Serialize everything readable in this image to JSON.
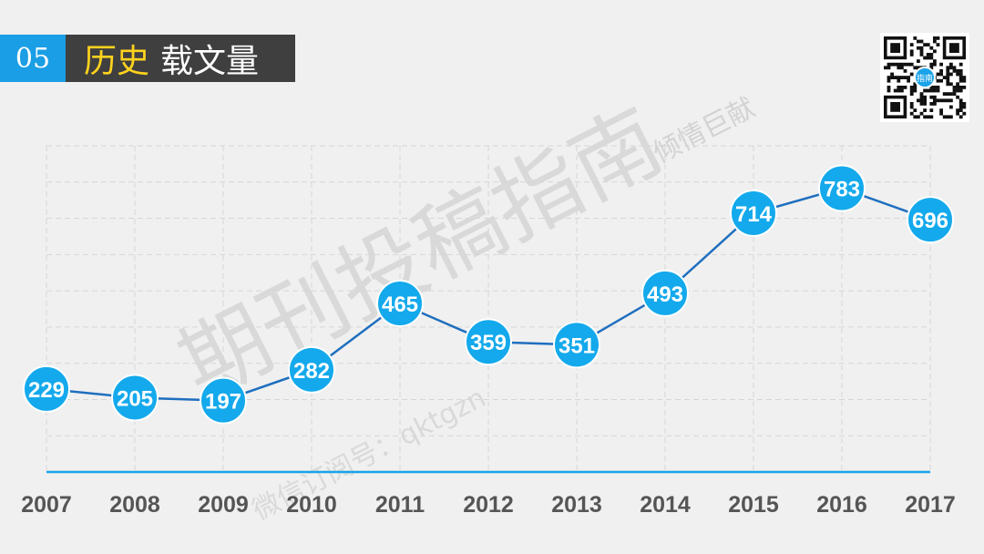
{
  "header": {
    "number": "05",
    "title_highlight": "历史",
    "title_rest": "载文量"
  },
  "watermark": {
    "main": "期刊投稿指南",
    "sub": "倾情巨献",
    "wechat": "微信订阅号：qktgzn"
  },
  "qr": {
    "center_label": "指南"
  },
  "colors": {
    "line": "#1f6fbf",
    "marker": "#14a9ec",
    "axis": "#1aa3e8",
    "header_accent": "#1a9ee5",
    "header_highlight": "#ffd21e"
  },
  "chart_data": {
    "type": "line",
    "categories": [
      "2007",
      "2008",
      "2009",
      "2010",
      "2011",
      "2012",
      "2013",
      "2014",
      "2015",
      "2016",
      "2017"
    ],
    "values": [
      229,
      205,
      197,
      282,
      465,
      359,
      351,
      493,
      714,
      783,
      696
    ],
    "title": "",
    "xlabel": "",
    "ylabel": "",
    "ylim": [
      0,
      900
    ],
    "grid": true,
    "data_labels": true
  }
}
